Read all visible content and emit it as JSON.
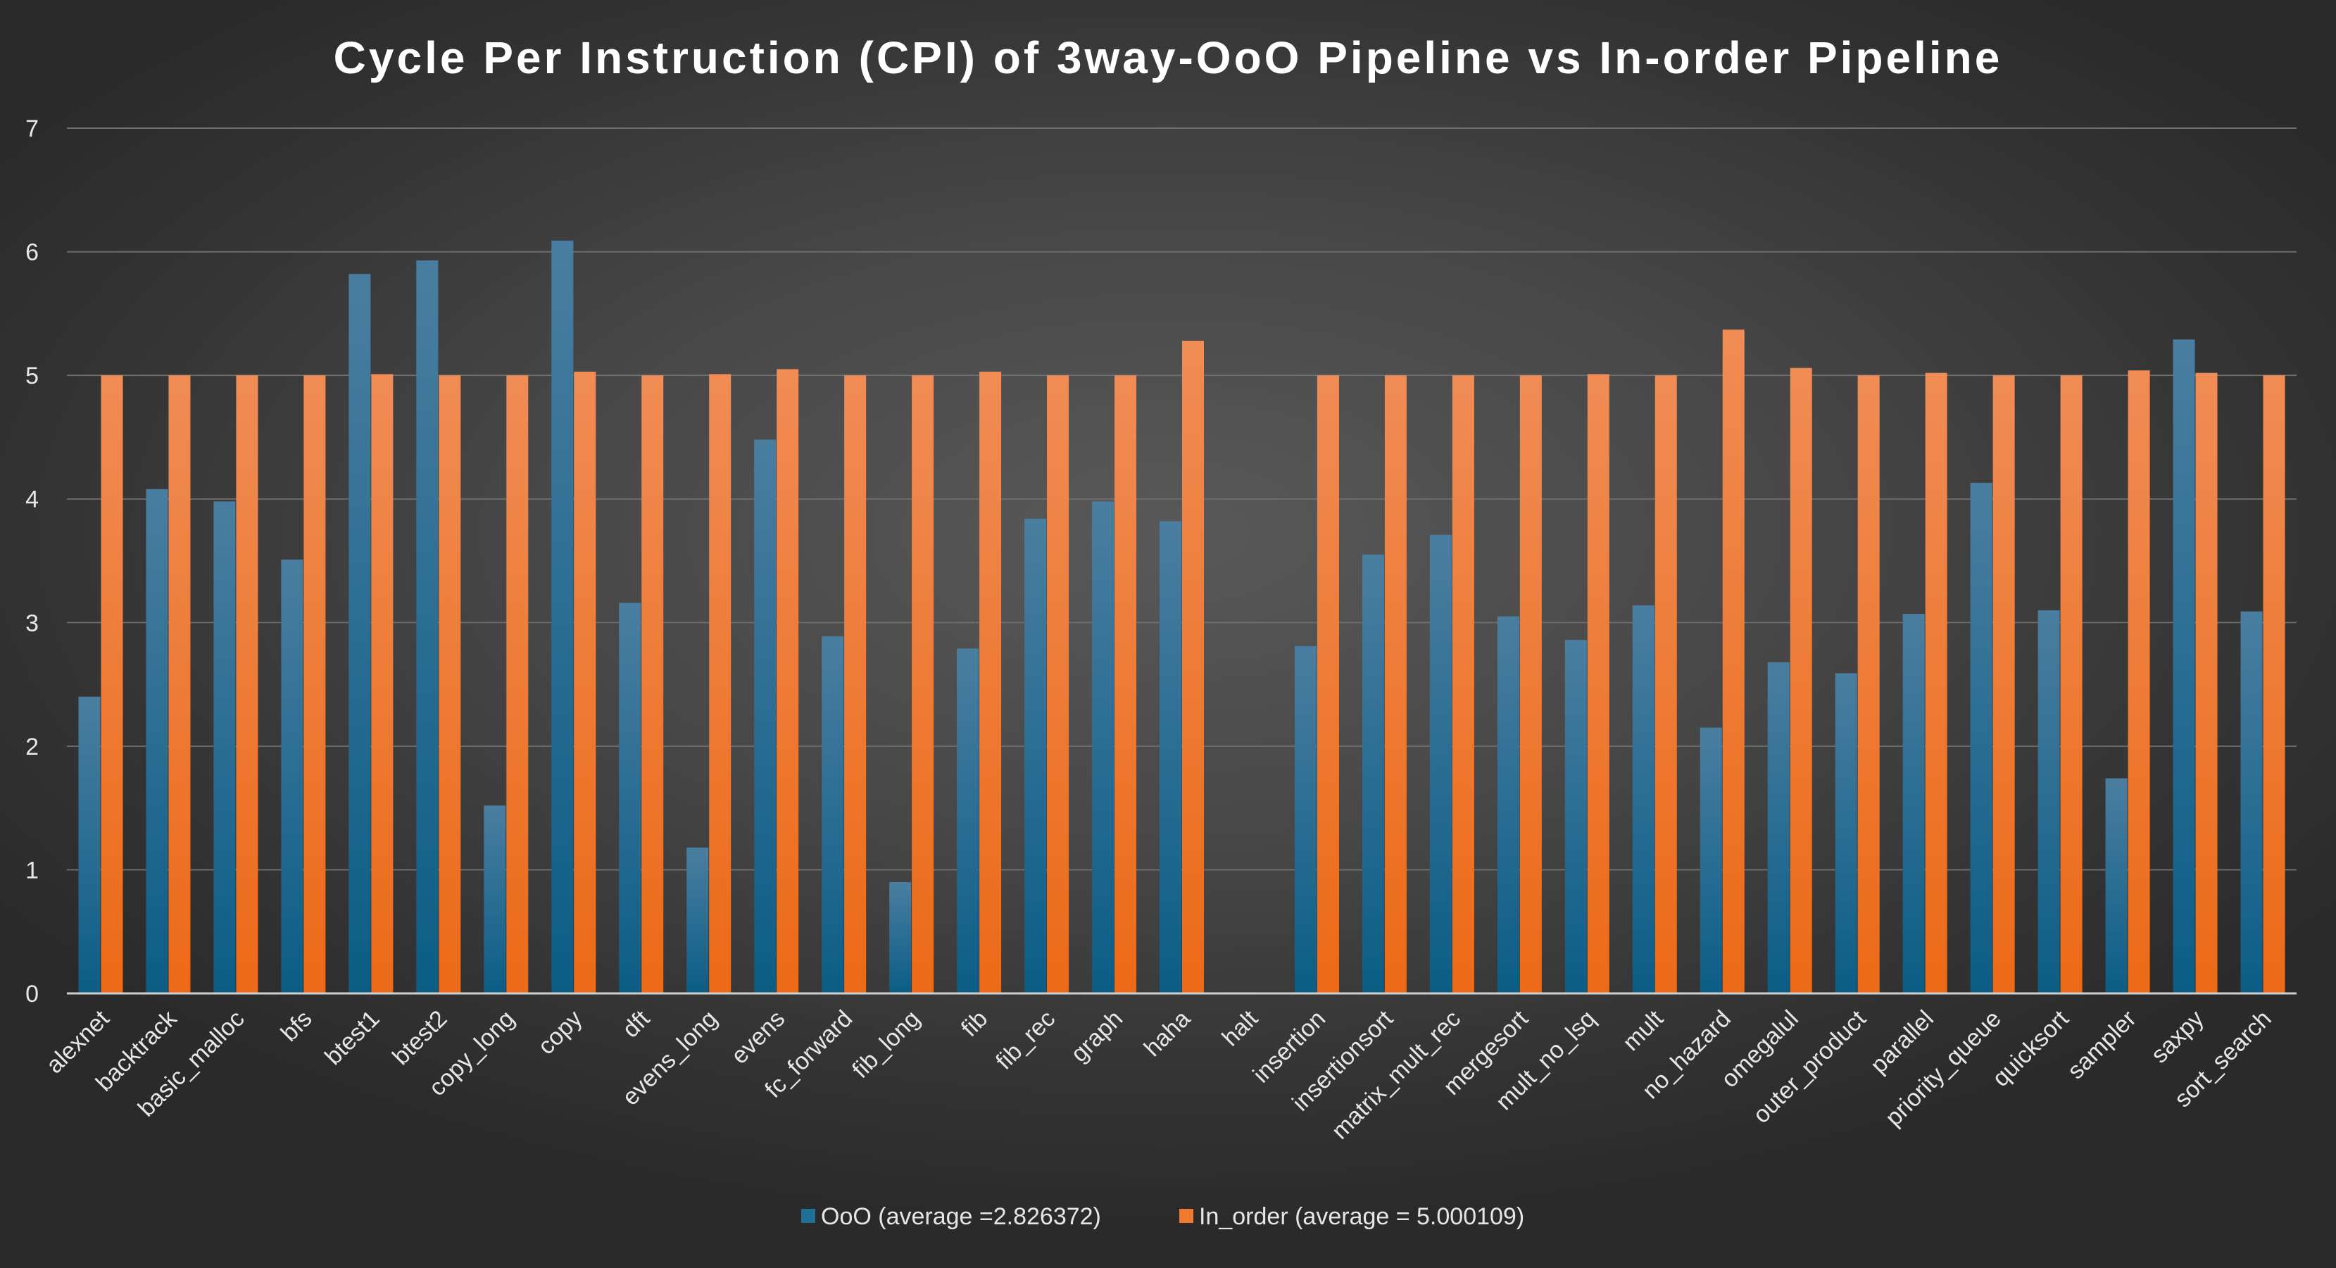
{
  "chart_data": {
    "type": "bar",
    "title": "Cycle Per Instruction (CPI) of 3way-OoO Pipeline vs In-order Pipeline",
    "xlabel": "",
    "ylabel": "",
    "ylim": [
      0,
      7
    ],
    "yticks": [
      0,
      1,
      2,
      3,
      4,
      5,
      6,
      7
    ],
    "grid": true,
    "legend_position": "bottom",
    "categories": [
      "alexnet",
      "backtrack",
      "basic_malloc",
      "bfs",
      "btest1",
      "btest2",
      "copy_long",
      "copy",
      "dft",
      "evens_long",
      "evens",
      "fc_forward",
      "fib_long",
      "fib",
      "fib_rec",
      "graph",
      "haha",
      "halt",
      "insertion",
      "insertionsort",
      "matrix_mult_rec",
      "mergesort",
      "mult_no_lsq",
      "mult",
      "no_hazard",
      "omegalul",
      "outer_product",
      "parallel",
      "priority_queue",
      "quicksort",
      "sampler",
      "saxpy",
      "sort_search"
    ],
    "series": [
      {
        "name": "OoO (average =2.826372)",
        "color": "#1f6f96",
        "values": [
          2.4,
          4.08,
          3.98,
          3.51,
          5.82,
          5.93,
          1.52,
          6.09,
          3.16,
          1.18,
          4.48,
          2.89,
          0.9,
          2.79,
          3.84,
          3.98,
          3.82,
          null,
          2.81,
          3.55,
          3.71,
          3.05,
          2.86,
          3.14,
          2.15,
          2.68,
          2.59,
          3.07,
          4.13,
          3.1,
          1.74,
          5.29,
          3.09
        ]
      },
      {
        "name": "In_order (average = 5.000109)",
        "color": "#f07a2e",
        "values": [
          5.0,
          5.0,
          5.0,
          5.0,
          5.01,
          5.0,
          5.0,
          5.03,
          5.0,
          5.01,
          5.05,
          5.0,
          5.0,
          5.03,
          5.0,
          5.0,
          5.28,
          null,
          5.0,
          5.0,
          5.0,
          5.0,
          5.01,
          5.0,
          5.37,
          5.06,
          5.0,
          5.02,
          5.0,
          5.0,
          5.04,
          5.02,
          5.0
        ]
      }
    ]
  }
}
